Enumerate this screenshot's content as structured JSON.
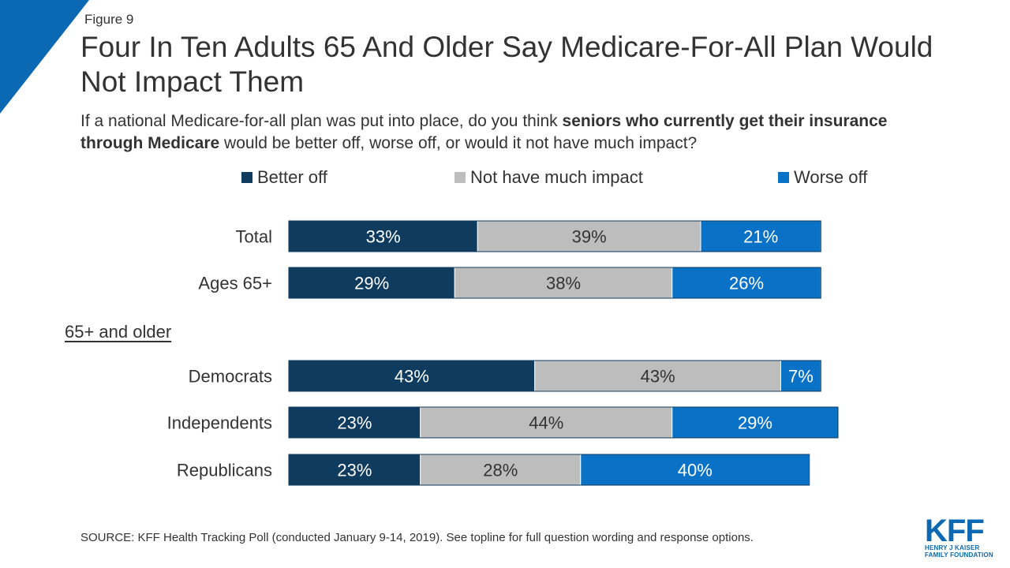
{
  "figure_label": "Figure 9",
  "title": "Four In Ten Adults 65 And Older Say Medicare-For-All Plan Would Not Impact Them",
  "subtitle": {
    "part1": "If a national Medicare-for-all plan was put into place, do you think ",
    "bold": "seniors who currently get their insurance through Medicare",
    "part2": " would be better off, worse off, or would it not have much impact?"
  },
  "group_label": "65+ and older",
  "source": "SOURCE: KFF Health Tracking Poll (conducted January 9-14, 2019). See topline for full question wording and response options.",
  "logo": {
    "main": "KFF",
    "line1": "HENRY J KAISER",
    "line2": "FAMILY FOUNDATION"
  },
  "colors": {
    "corner": "#0b69b3",
    "better_off": "#0f3b5f",
    "no_impact": "#bdbdbd",
    "worse_off": "#0a72c6"
  },
  "chart_data": {
    "type": "bar",
    "orientation": "horizontal",
    "stacked": true,
    "legend_placement": "top",
    "categories": [
      "Total",
      "Ages 65+",
      "Democrats",
      "Independents",
      "Republicans"
    ],
    "series": [
      {
        "name": "Better off",
        "values": [
          33,
          29,
          43,
          23,
          23
        ],
        "color": "#0f3b5f",
        "label_color": "#ffffff"
      },
      {
        "name": "Not have much impact",
        "values": [
          39,
          38,
          43,
          44,
          28
        ],
        "color": "#bdbdbd",
        "label_color": "#333333"
      },
      {
        "name": "Worse off",
        "values": [
          21,
          26,
          7,
          29,
          40
        ],
        "color": "#0a72c6",
        "label_color": "#ffffff"
      }
    ],
    "value_suffix": "%",
    "xlim": [
      0,
      100
    ]
  }
}
